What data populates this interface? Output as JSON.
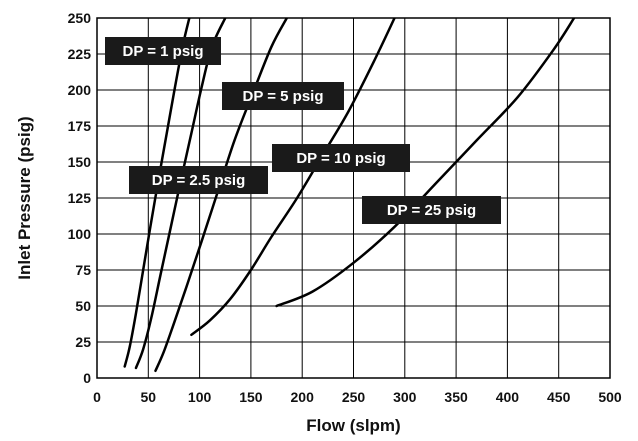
{
  "chart_data": {
    "type": "line",
    "title": "",
    "xlabel": "Flow (slpm)",
    "ylabel": "Inlet Pressure (psig)",
    "xlim": [
      0,
      500
    ],
    "ylim": [
      0,
      250
    ],
    "x_ticks": [
      0,
      50,
      100,
      150,
      200,
      250,
      300,
      350,
      400,
      450,
      500
    ],
    "y_ticks": [
      0,
      25,
      50,
      75,
      100,
      125,
      150,
      175,
      200,
      225,
      250
    ],
    "grid": true,
    "series": [
      {
        "name": "DP = 1 psig",
        "points": [
          [
            27,
            8
          ],
          [
            32,
            22
          ],
          [
            38,
            45
          ],
          [
            45,
            75
          ],
          [
            52,
            105
          ],
          [
            60,
            138
          ],
          [
            68,
            170
          ],
          [
            76,
            202
          ],
          [
            84,
            232
          ],
          [
            90,
            250
          ]
        ]
      },
      {
        "name": "DP = 2.5 psig",
        "points": [
          [
            38,
            7
          ],
          [
            45,
            20
          ],
          [
            53,
            42
          ],
          [
            62,
            72
          ],
          [
            72,
            105
          ],
          [
            82,
            138
          ],
          [
            92,
            170
          ],
          [
            102,
            202
          ],
          [
            112,
            230
          ],
          [
            125,
            250
          ]
        ]
      },
      {
        "name": "DP = 5 psig",
        "points": [
          [
            57,
            5
          ],
          [
            65,
            18
          ],
          [
            75,
            38
          ],
          [
            88,
            65
          ],
          [
            102,
            95
          ],
          [
            118,
            130
          ],
          [
            134,
            165
          ],
          [
            152,
            198
          ],
          [
            170,
            230
          ],
          [
            185,
            250
          ]
        ]
      },
      {
        "name": "DP = 10 psig",
        "points": [
          [
            92,
            30
          ],
          [
            110,
            40
          ],
          [
            130,
            55
          ],
          [
            150,
            75
          ],
          [
            170,
            98
          ],
          [
            195,
            125
          ],
          [
            220,
            155
          ],
          [
            245,
            185
          ],
          [
            270,
            220
          ],
          [
            290,
            250
          ]
        ]
      },
      {
        "name": "DP = 25 psig",
        "points": [
          [
            175,
            50
          ],
          [
            210,
            60
          ],
          [
            250,
            80
          ],
          [
            290,
            105
          ],
          [
            330,
            135
          ],
          [
            370,
            165
          ],
          [
            410,
            195
          ],
          [
            445,
            228
          ],
          [
            465,
            250
          ]
        ]
      }
    ],
    "colors": {
      "line": "#000000",
      "grid": "#000000",
      "label_bg": "#1a1a1a",
      "label_text": "#ffffff"
    }
  }
}
